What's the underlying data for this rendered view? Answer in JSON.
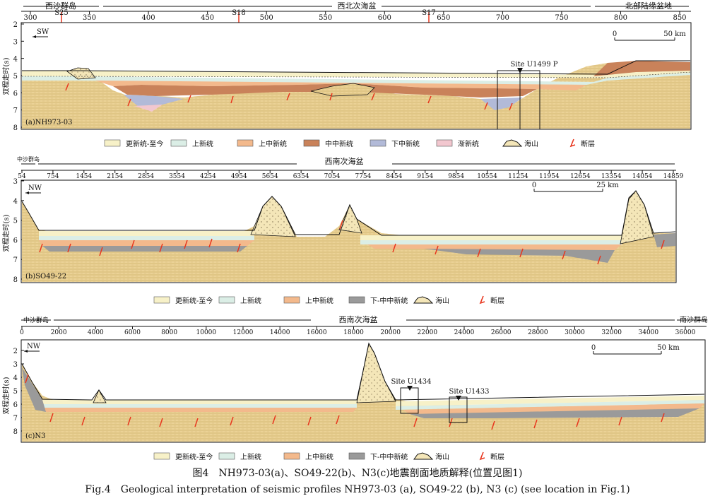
{
  "colors": {
    "pleistocene": "#f7f1c8",
    "upper_pliocene": "#dbeee6",
    "upper_middle_miocene": "#f3b98c",
    "middle_miocene": "#c9825a",
    "lower_miocene": "#b2bad8",
    "oligocene": "#f2c7cf",
    "lower_middle_miocene": "#9a9a9a",
    "seismic_bg": "#e9cf8f",
    "fault": "#e8361e"
  },
  "icons": {
    "fault": "red-fault-icon",
    "seamount": "seamount-icon"
  },
  "panel_a": {
    "regions": [
      "西沙群岛",
      "西北次海盆",
      "北部陆缘盆地"
    ],
    "ticks": [
      "300",
      "350",
      "400",
      "450",
      "500",
      "550",
      "600",
      "650",
      "700",
      "750",
      "800",
      "850"
    ],
    "markers": [
      "S25",
      "S18",
      "S17"
    ],
    "y_label": "双程走时(s)",
    "y_ticks": [
      "2",
      "3",
      "4",
      "5",
      "6",
      "7",
      "8"
    ],
    "direction": "SW",
    "scale": [
      "0",
      "50 km"
    ],
    "site": "Site U1499 P",
    "label": "(a)NH973-03",
    "legend": [
      "更新统-至今",
      "上新统",
      "上中新统",
      "中中新统",
      "下中新统",
      "渐新统",
      "海山",
      "断层"
    ]
  },
  "panel_b": {
    "regions": [
      "中沙群岛",
      "西南次海盆"
    ],
    "ticks": [
      "54",
      "754",
      "1454",
      "2154",
      "2854",
      "3554",
      "4254",
      "4954",
      "5654",
      "6354",
      "7054",
      "7754",
      "8454",
      "9154",
      "9854",
      "10554",
      "11254",
      "11954",
      "12654",
      "13354",
      "14054",
      "14859"
    ],
    "y_label": "双程走时(s)",
    "y_ticks": [
      "3",
      "4",
      "5",
      "6",
      "7",
      "8"
    ],
    "direction": "NW",
    "scale": [
      "0",
      "25 km"
    ],
    "label": "(b)SO49-22",
    "legend": [
      "更新统-至今",
      "上新统",
      "上中新统",
      "下-中中新统",
      "海山",
      "断层"
    ]
  },
  "panel_c": {
    "regions": [
      "中沙群岛",
      "西南次海盆",
      "南沙群岛"
    ],
    "ticks": [
      "0",
      "2000",
      "4000",
      "6000",
      "8000",
      "10000",
      "12000",
      "14000",
      "16000",
      "18000",
      "20000",
      "22000",
      "24000",
      "26000",
      "28000",
      "30000",
      "32000",
      "34000",
      "36000"
    ],
    "y_label": "双程走时(s)",
    "y_ticks": [
      "2",
      "3",
      "4",
      "5",
      "6",
      "7",
      "8"
    ],
    "direction": "NW",
    "scale": [
      "0",
      "50 km"
    ],
    "sites": [
      "Site U1434",
      "Site U1433"
    ],
    "label": "(c)N3",
    "legend": [
      "更新统-至今",
      "上新统",
      "上中新统",
      "下-中中新统",
      "海山",
      "断层"
    ]
  },
  "caption_cn": "图4　NH973-03(a)、SO49-22(b)、N3(c)地震剖面地质解释(位置见图1)",
  "caption_en": "Fig.4　Geological interpretation of seismic profiles NH973-03 (a), SO49-22 (b), N3 (c) (see location in Fig.1)"
}
